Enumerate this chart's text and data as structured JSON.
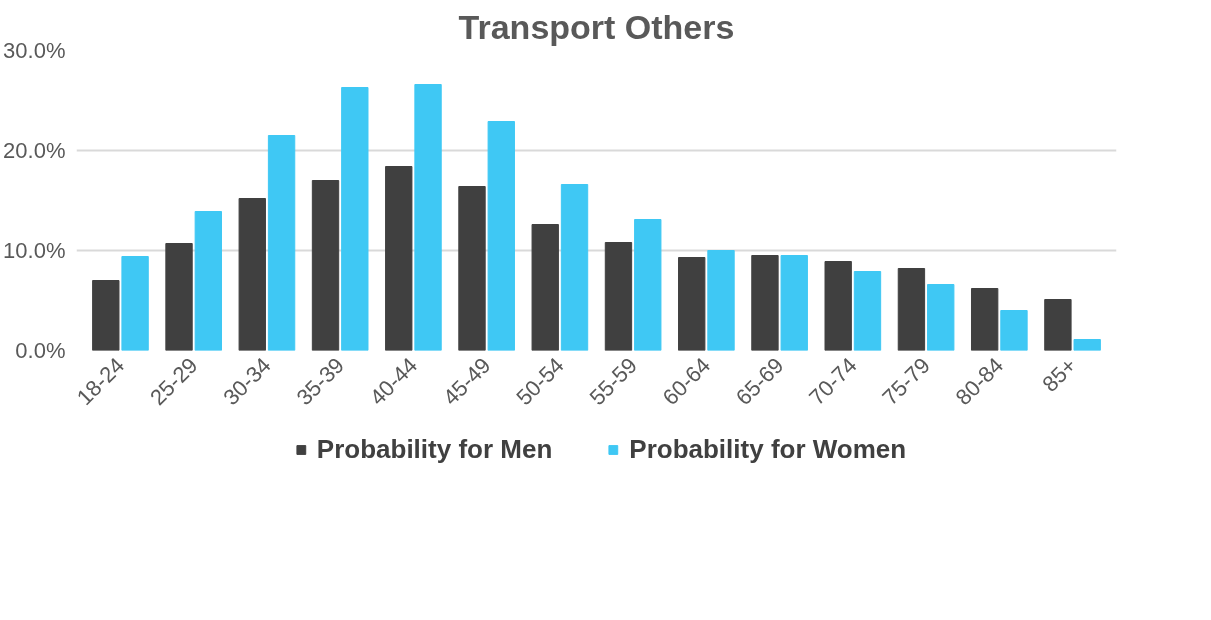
{
  "chart_data": {
    "type": "bar",
    "title": "Transport Others",
    "categories": [
      "18-24",
      "25-29",
      "30-34",
      "35-39",
      "40-44",
      "45-49",
      "50-54",
      "55-59",
      "60-64",
      "65-69",
      "70-74",
      "75-79",
      "80-84",
      "85+"
    ],
    "series": [
      {
        "name": "Probability for Men",
        "color": "#404040",
        "values": [
          7.0,
          10.7,
          15.2,
          17.0,
          18.4,
          16.4,
          12.6,
          10.8,
          9.3,
          9.5,
          8.9,
          8.2,
          6.2,
          5.1
        ]
      },
      {
        "name": "Probability for Women",
        "color": "#3fc8f4",
        "values": [
          9.4,
          13.9,
          21.5,
          26.3,
          26.6,
          22.9,
          16.6,
          13.1,
          10.0,
          9.5,
          7.9,
          6.6,
          4.0,
          1.1
        ]
      }
    ],
    "ylim": [
      0,
      30
    ],
    "yticks": [
      {
        "value": 0,
        "label": "0.0%"
      },
      {
        "value": 10,
        "label": "10.0%"
      },
      {
        "value": 20,
        "label": "20.0%"
      },
      {
        "value": 30,
        "label": "30.0%"
      }
    ],
    "grid": "y",
    "legend": "bottom"
  }
}
